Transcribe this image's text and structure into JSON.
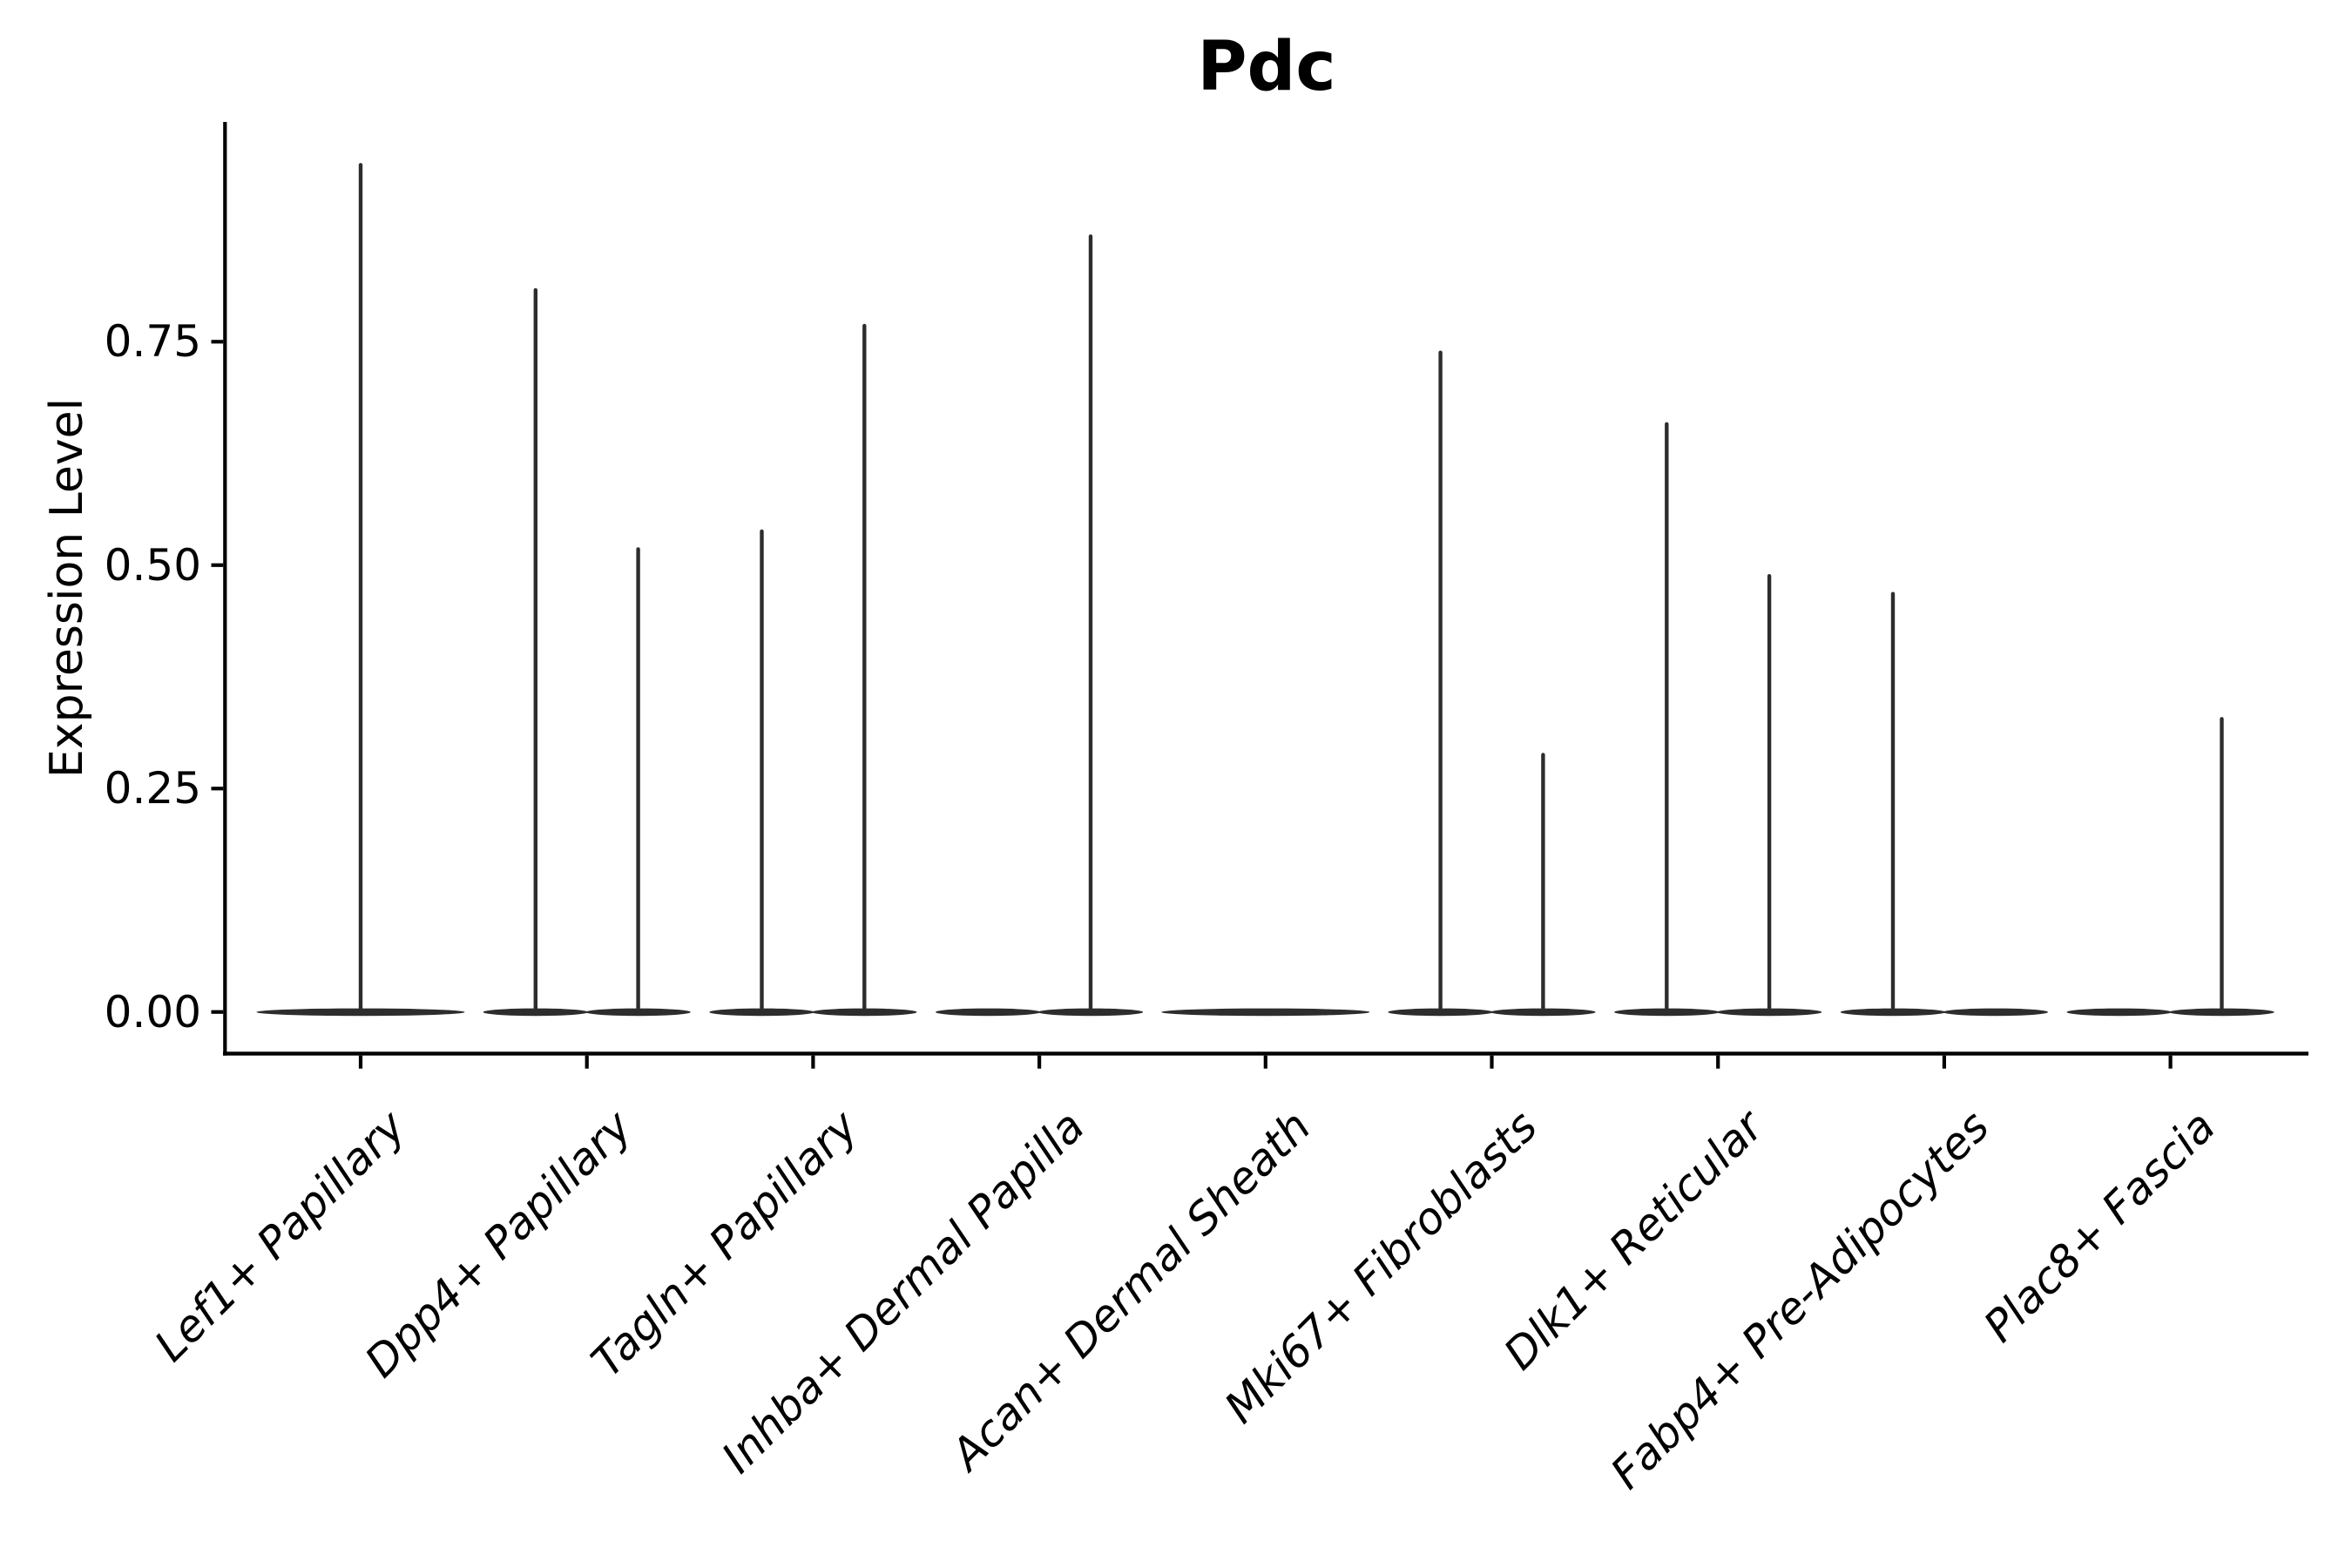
{
  "chart_data": {
    "type": "violin",
    "title": "Pdc",
    "ylabel": "Expression Level",
    "xlabel": "",
    "ylim": [
      -0.046,
      0.995
    ],
    "yticks": [
      0,
      0.25,
      0.5,
      0.75
    ],
    "ytick_labels": [
      "0.00",
      "0.25",
      "0.50",
      "0.75"
    ],
    "categories": [
      "Lef1+ Papillary",
      "Dpp4+ Papillary",
      "Tagln+ Papillary",
      "Inhba+ Dermal Papilla",
      "Acan+ Dermal Sheath",
      "Mki67+ Fibroblasts",
      "Dlk1+ Reticular",
      "Fabp4+ Pre-Adipocytes",
      "Plac8+ Fascia"
    ],
    "series": [
      {
        "category": "Lef1+ Papillary",
        "violins": [
          {
            "position": "center",
            "max_expression": 0.95
          }
        ]
      },
      {
        "category": "Dpp4+ Papillary",
        "violins": [
          {
            "position": "left",
            "max_expression": 0.81
          },
          {
            "position": "right",
            "max_expression": 0.52
          }
        ]
      },
      {
        "category": "Tagln+ Papillary",
        "violins": [
          {
            "position": "left",
            "max_expression": 0.54
          },
          {
            "position": "right",
            "max_expression": 0.77
          }
        ]
      },
      {
        "category": "Inhba+ Dermal Papilla",
        "violins": [
          {
            "position": "left",
            "max_expression": 0
          },
          {
            "position": "right",
            "max_expression": 0.87
          }
        ]
      },
      {
        "category": "Acan+ Dermal Sheath",
        "violins": [
          {
            "position": "center",
            "max_expression": 0
          }
        ]
      },
      {
        "category": "Mki67+ Fibroblasts",
        "violins": [
          {
            "position": "left",
            "max_expression": 0.74
          },
          {
            "position": "right",
            "max_expression": 0.29
          }
        ]
      },
      {
        "category": "Dlk1+ Reticular",
        "violins": [
          {
            "position": "left",
            "max_expression": 0.66
          },
          {
            "position": "right",
            "max_expression": 0.49
          }
        ]
      },
      {
        "category": "Fabp4+ Pre-Adipocytes",
        "violins": [
          {
            "position": "left",
            "max_expression": 0.47
          },
          {
            "position": "right",
            "max_expression": 0
          }
        ]
      },
      {
        "category": "Plac8+ Fascia",
        "violins": [
          {
            "position": "left",
            "max_expression": 0
          },
          {
            "position": "right",
            "max_expression": 0.33
          }
        ]
      }
    ],
    "legend": "none",
    "grid": "off",
    "x_tick_label_rotation_deg": 45,
    "x_tick_label_style": "italic",
    "density_shape": "mass concentrated at 0 (flat lens) with a thin tail rising to max_expression",
    "colors": {
      "violin": "#2d2d2d",
      "axis": "#000000",
      "text": "#000000",
      "background": "#ffffff"
    }
  }
}
